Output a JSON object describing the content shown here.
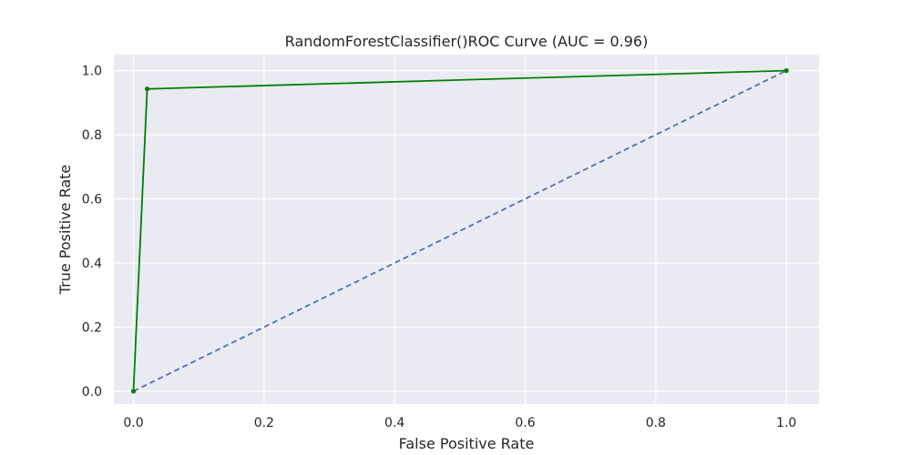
{
  "chart_data": {
    "type": "line",
    "title": "RandomForestClassifier()ROC Curve (AUC = 0.96)",
    "xlabel": "False Positive Rate",
    "ylabel": "True Positive Rate",
    "xlim": [
      -0.03,
      1.05
    ],
    "ylim": [
      -0.04,
      1.05
    ],
    "xticks": [
      0.0,
      0.2,
      0.4,
      0.6,
      0.8,
      1.0
    ],
    "xtick_labels": [
      "0.0",
      "0.2",
      "0.4",
      "0.6",
      "0.8",
      "1.0"
    ],
    "yticks": [
      0.0,
      0.2,
      0.4,
      0.6,
      0.8,
      1.0
    ],
    "ytick_labels": [
      "0.0",
      "0.2",
      "0.4",
      "0.6",
      "0.8",
      "1.0"
    ],
    "grid": true,
    "background_color": "#eaeaf2",
    "grid_color": "#ffffff",
    "series": [
      {
        "style": "solid",
        "marker": "dot",
        "color": "#008000",
        "x": [
          0.0,
          0.021,
          1.0
        ],
        "y": [
          0.0,
          0.943,
          1.0
        ]
      },
      {
        "style": "dashed",
        "marker": "none",
        "color": "#4c72b0",
        "x": [
          0.0,
          1.0
        ],
        "y": [
          0.0,
          1.0
        ]
      }
    ]
  }
}
